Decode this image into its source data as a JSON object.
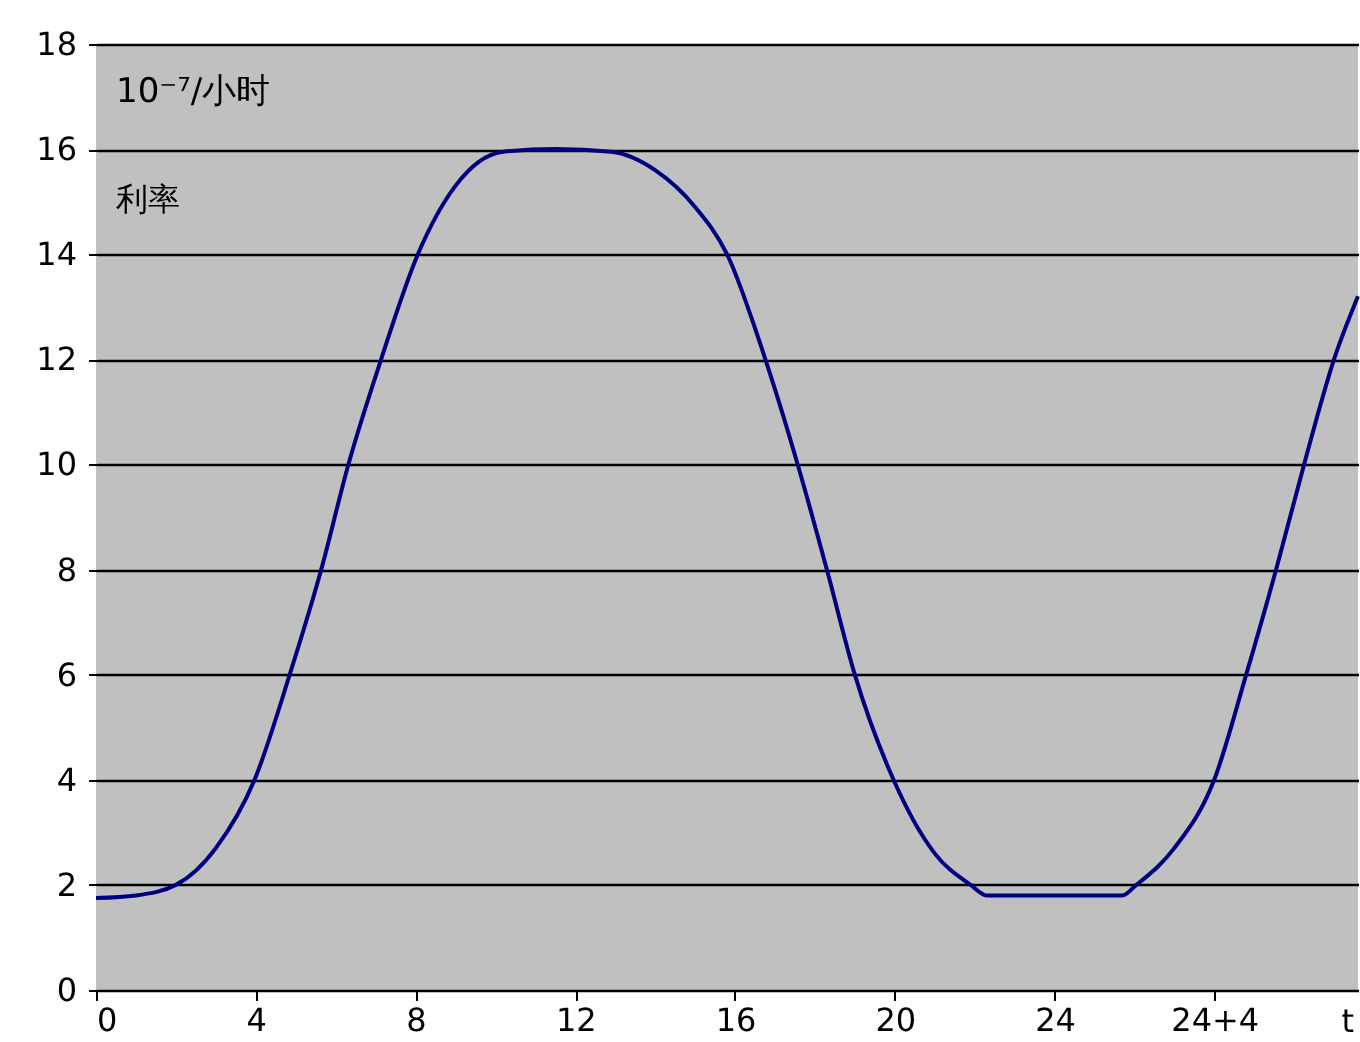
{
  "chart_data": {
    "type": "line",
    "xlabel": "t",
    "annotations": [
      "10⁻⁷/小时",
      "利率"
    ],
    "x": [
      0,
      1,
      2.0,
      3.0,
      3.97,
      4.85,
      5.64,
      6.32,
      7.14,
      8.06,
      9.0,
      10.2,
      11.5,
      12.9,
      14.0,
      15.0,
      15.8,
      16.76,
      17.57,
      18.3,
      19.0,
      19.97,
      21.0,
      21.9,
      22.3,
      24.0,
      25.7,
      26.05,
      27.0,
      28.0,
      28.8,
      29.55,
      30.25,
      31.0,
      31.6
    ],
    "series": [
      {
        "color": "#000080",
        "values": [
          1.75,
          1.8,
          2.0,
          2.7,
          4,
          6,
          8,
          10,
          12,
          14,
          15.3,
          15.95,
          16,
          15.95,
          15.6,
          14.9,
          14,
          12,
          10,
          8,
          6,
          4,
          2.6,
          2,
          1.8,
          1.8,
          1.8,
          2,
          2.7,
          4,
          6,
          8,
          10,
          12,
          13.2
        ]
      }
    ],
    "xlim": [
      0,
      31.6
    ],
    "ylim": [
      0,
      18
    ],
    "xticks": [
      0,
      4,
      8,
      12,
      16,
      20,
      24,
      {
        "value": 28,
        "label": "24+4"
      }
    ],
    "yticks": [
      0,
      2,
      4,
      6,
      8,
      10,
      12,
      14,
      16,
      18
    ],
    "grid": "y",
    "line_style": "solid",
    "marker": "none"
  }
}
